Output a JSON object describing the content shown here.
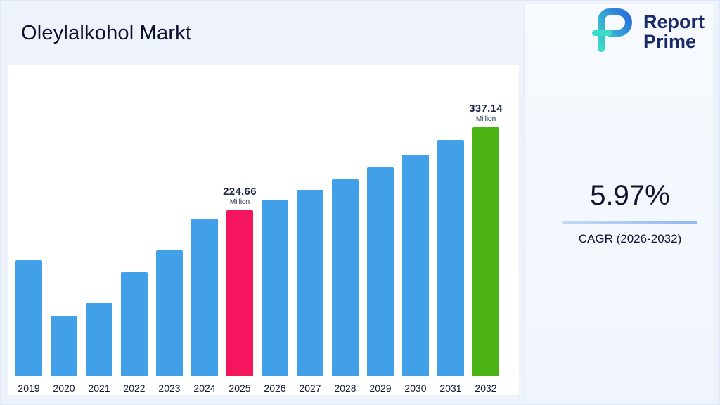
{
  "page": {
    "title": "Oleylalkohol Markt"
  },
  "logo": {
    "name": "Report Prime",
    "line1": "Report",
    "line2": "Prime",
    "brand_navy": "#1b2a6b",
    "brand_blue": "#2a6bdd",
    "brand_teal": "#3ddbc9"
  },
  "stats": {
    "cagr_value": "5.97%",
    "cagr_label": "CAGR (2026-2032)"
  },
  "chart_data": {
    "type": "bar",
    "title": "Oleylalkohol Markt",
    "unit": "Million",
    "categories": [
      "2019",
      "2020",
      "2021",
      "2022",
      "2023",
      "2024",
      "2025",
      "2026",
      "2027",
      "2028",
      "2029",
      "2030",
      "2031",
      "2032"
    ],
    "values": [
      157,
      81,
      99,
      141,
      170,
      213,
      224.66,
      238,
      252,
      267,
      283,
      300,
      320,
      337.14
    ],
    "annotations": [
      {
        "category": "2025",
        "value": "224.66",
        "unit": "Million"
      },
      {
        "category": "2032",
        "value": "337.14",
        "unit": "Million"
      }
    ],
    "colors": {
      "default": "#41a0e8",
      "2025": "#f5155f",
      "2032": "#4cb314"
    },
    "ylim": [
      0,
      380
    ],
    "grid": false,
    "legend": false
  }
}
